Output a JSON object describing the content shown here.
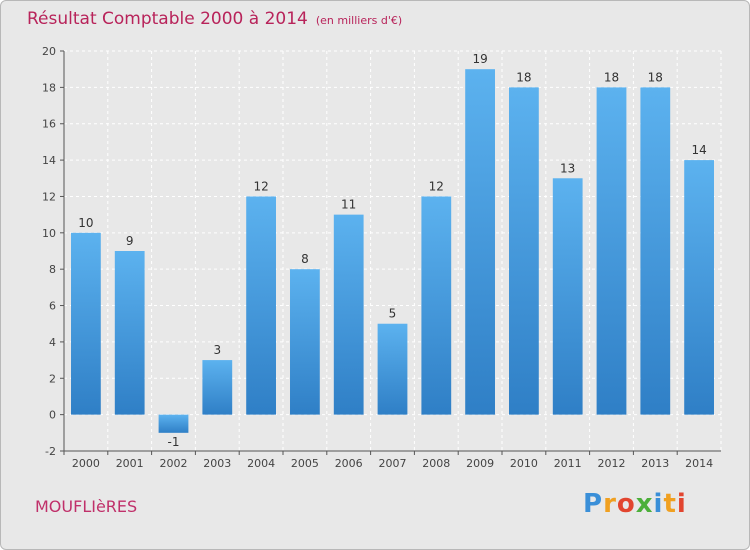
{
  "header": {
    "title": "Résultat Comptable 2000 à 2014",
    "subtitle": "(en milliers d'€)"
  },
  "footer": {
    "place": "MOUFLIèRES"
  },
  "brand": {
    "letters": [
      "P",
      "r",
      "o",
      "x",
      "i",
      "t",
      "i"
    ],
    "colors": [
      "#3a8fd8",
      "#f0a020",
      "#e2452f",
      "#4caf3a",
      "#3a8fd8",
      "#f0a020",
      "#e2452f"
    ]
  },
  "colors": {
    "title": "#b8235a",
    "bar_top": "#5cb2ef",
    "bar_bottom": "#2f7fc6",
    "grid": "#ffffff",
    "axis": "#555555"
  },
  "chart_data": {
    "type": "bar",
    "title": "Résultat Comptable 2000 à 2014",
    "xlabel": "",
    "ylabel": "",
    "ylim": [
      -2,
      20
    ],
    "yticks": [
      -2,
      0,
      2,
      4,
      6,
      8,
      10,
      12,
      14,
      16,
      18,
      20
    ],
    "grid": true,
    "categories": [
      "2000",
      "2001",
      "2002",
      "2003",
      "2004",
      "2005",
      "2006",
      "2007",
      "2008",
      "2009",
      "2010",
      "2011",
      "2012",
      "2013",
      "2014"
    ],
    "values": [
      10,
      9,
      -1,
      3,
      12,
      8,
      11,
      5,
      12,
      19,
      18,
      13,
      18,
      18,
      14
    ]
  }
}
